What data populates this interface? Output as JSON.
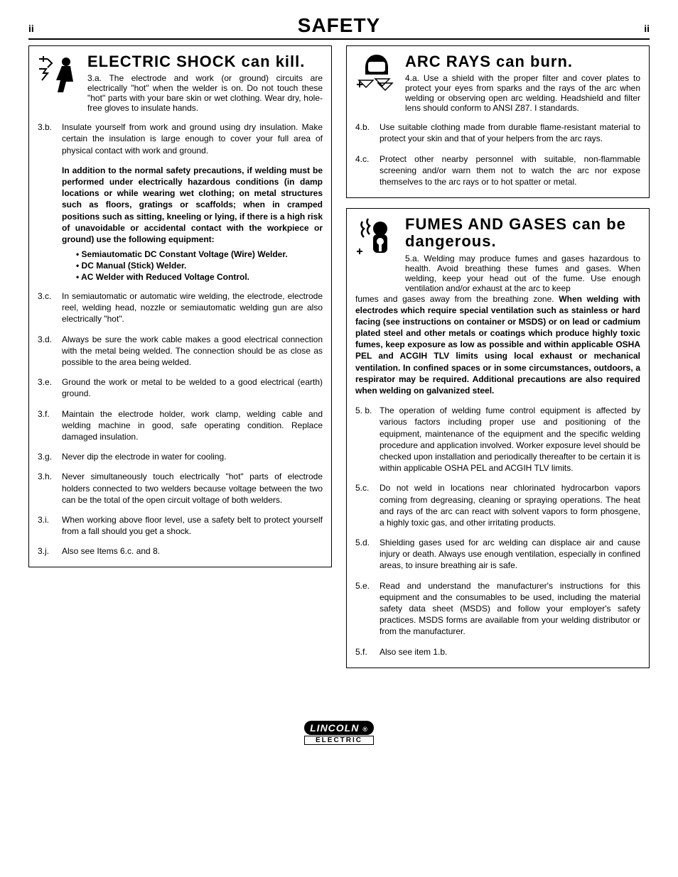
{
  "header": {
    "left": "ii",
    "title": "SAFETY",
    "right": "ii"
  },
  "left_col": {
    "section1": {
      "title": "ELECTRIC SHOCK can kill.",
      "lead_num": "3.a.",
      "lead_text": "The electrode and work (or ground) circuits are electrically \"hot\" when the welder is on. Do not touch these \"hot\" parts with your bare skin or wet clothing. Wear dry, hole-free gloves to insulate hands.",
      "items": [
        {
          "num": "3.b.",
          "text": "Insulate yourself from work and ground using dry insulation. Make certain the insulation is large enough to cover your full area of physical contact with work and ground."
        }
      ],
      "bold_block": "In addition to the normal safety precautions, if welding must be performed under electrically hazardous conditions (in damp locations or while wearing wet clothing; on metal structures such as floors, gratings or scaffolds; when in cramped positions such as sitting, kneeling or lying, if there is a high risk of unavoidable or accidental contact with the workpiece or ground) use the following equipment:",
      "bullets": [
        "• Semiautomatic DC Constant Voltage (Wire) Welder.",
        "• DC Manual (Stick) Welder.",
        "• AC Welder with Reduced Voltage Control."
      ],
      "items2": [
        {
          "num": "3.c.",
          "text": "In semiautomatic or automatic wire welding, the electrode, electrode reel, welding head, nozzle or semiautomatic welding gun are also electrically \"hot\"."
        },
        {
          "num": "3.d.",
          "text": "Always be sure the work cable makes a good electrical connection with the metal being welded. The connection should be as close as possible to the area being welded."
        },
        {
          "num": "3.e.",
          "text": "Ground the work or metal to be welded to a good electrical (earth) ground."
        },
        {
          "num": "3.f.",
          "text": "Maintain the electrode holder, work clamp, welding cable  and welding machine in good, safe operating condition. Replace damaged insulation."
        },
        {
          "num": "3.g.",
          "text": "Never dip the electrode in water for cooling."
        },
        {
          "num": "3.h.",
          "text": "Never simultaneously touch electrically \"hot\" parts of electrode holders connected to two welders because voltage between the two can be the total of the open circuit voltage of both welders."
        },
        {
          "num": "3.i.",
          "text": "When working above floor level, use a safety belt to protect yourself from a fall should you get a shock."
        },
        {
          "num": "3.j.",
          "text": "Also see Items 6.c. and 8."
        }
      ]
    }
  },
  "right_col": {
    "section2": {
      "title": "ARC RAYS can burn.",
      "lead_num": "4.a.",
      "lead_text": "Use a shield with the proper filter and cover plates to protect your eyes from sparks and the rays of the arc when welding or observing open arc welding. Headshield and filter lens should conform to ANSI Z87. I standards.",
      "items": [
        {
          "num": "4.b.",
          "text": "Use suitable clothing made from durable flame-resistant material to protect your skin and that of your helpers from the arc rays."
        },
        {
          "num": "4.c.",
          "text": "Protect other nearby personnel with suitable, non-flammable screening and/or warn them not to watch the arc nor expose themselves to the arc rays or to hot spatter or metal."
        }
      ]
    },
    "section3": {
      "title": "FUMES AND GASES can be dangerous.",
      "lead_num": "5.a.",
      "lead_text": "Welding may produce fumes and gases hazardous to health. Avoid breathing these fumes and gases. When welding, keep your head out of the fume. Use enough ventilation and/or exhaust at the arc to keep fumes and gases away from the breathing zone. ",
      "lead_bold": "When welding with electrodes which require special ventilation such as stainless or hard facing (see instructions on container or MSDS) or on lead or cadmium plated steel and other metals or coatings which produce highly toxic fumes, keep exposure as low as possible and within applicable OSHA PEL and ACGIH TLV limits using local exhaust or mechanical ventilation. In confined spaces or in some circumstances, outdoors, a respirator may be required. Additional precautions are also required when welding on galvanized  steel.",
      "items": [
        {
          "num": "5. b.",
          "text": "The operation of welding fume control equipment is affected by various factors including proper use and positioning of the equipment, maintenance of the equipment and the specific welding procedure and application involved.  Worker exposure level should be checked upon installation and periodically thereafter to be certain it is within applicable OSHA PEL and ACGIH TLV limits."
        },
        {
          "num": "5.c.",
          "text": "Do not weld in locations near chlorinated hydrocarbon vapors coming from degreasing, cleaning or spraying operations. The heat and rays of the arc can react with solvent vapors to form phosgene, a highly toxic gas, and other irritating products."
        },
        {
          "num": "5.d.",
          "text": "Shielding gases used for arc welding can displace air and cause injury or death. Always use enough ventilation, especially in confined areas, to insure breathing air is safe."
        },
        {
          "num": "5.e.",
          "text": "Read and understand the manufacturer's instructions for this equipment and the consumables to be used, including the material safety data sheet (MSDS) and follow your employer's safety practices. MSDS forms are available from your welding distributor or from the manufacturer."
        },
        {
          "num": "5.f.",
          "text": "Also see item 1.b."
        }
      ]
    }
  },
  "logo": {
    "top": "LINCOLN",
    "bottom": "ELECTRIC"
  }
}
